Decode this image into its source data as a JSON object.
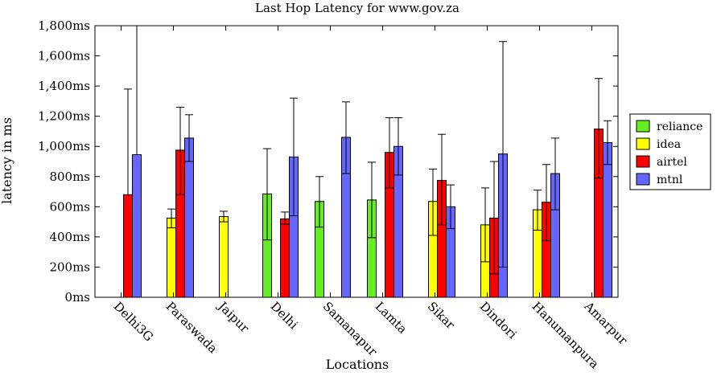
{
  "chart_data": {
    "type": "bar",
    "title": "Last Hop Latency for www.gov.za",
    "xlabel": "Locations",
    "ylabel": "latency in ms",
    "ylim": [
      0,
      1800
    ],
    "yticks": [
      0,
      200,
      400,
      600,
      800,
      1000,
      1200,
      1400,
      1600,
      1800
    ],
    "ytick_labels": [
      "0ms",
      "200ms",
      "400ms",
      "600ms",
      "800ms",
      "1,000ms",
      "1,200ms",
      "1,400ms",
      "1,600ms",
      "1,800ms"
    ],
    "categories": [
      "Delhi3G",
      "Paraswada",
      "Jaipur",
      "Delhi",
      "Samanapur",
      "Lamta",
      "Sikar",
      "Dindori",
      "Hanumanpura",
      "Amarpur"
    ],
    "legend_position": "right",
    "series": [
      {
        "name": "reliance",
        "color": "#66ee22",
        "values": [
          null,
          null,
          null,
          685,
          635,
          645,
          null,
          null,
          null,
          null
        ],
        "err_low": [
          null,
          null,
          null,
          380,
          465,
          395,
          null,
          null,
          null,
          null
        ],
        "err_high": [
          null,
          null,
          null,
          985,
          800,
          895,
          null,
          null,
          null,
          null
        ]
      },
      {
        "name": "idea",
        "color": "#ffff00",
        "values": [
          null,
          525,
          535,
          null,
          null,
          null,
          635,
          480,
          580,
          null
        ],
        "err_low": [
          null,
          460,
          500,
          null,
          null,
          null,
          410,
          235,
          445,
          null
        ],
        "err_high": [
          null,
          585,
          570,
          null,
          null,
          null,
          850,
          725,
          710,
          null
        ]
      },
      {
        "name": "airtel",
        "color": "#ff0000",
        "values": [
          680,
          975,
          null,
          520,
          null,
          960,
          775,
          525,
          630,
          1115
        ],
        "err_low": [
          null,
          680,
          null,
          485,
          null,
          725,
          480,
          155,
          375,
          790
        ],
        "err_high": [
          1380,
          1260,
          null,
          565,
          null,
          1190,
          1080,
          900,
          880,
          1450
        ]
      },
      {
        "name": "mtnl",
        "color": "#6666ff",
        "values": [
          945,
          1055,
          null,
          930,
          1060,
          1000,
          600,
          950,
          820,
          1025
        ],
        "err_low": [
          null,
          900,
          null,
          540,
          820,
          810,
          455,
          200,
          580,
          880
        ],
        "err_high": [
          1800,
          1210,
          null,
          1320,
          1295,
          1190,
          745,
          1695,
          1055,
          1170
        ]
      }
    ]
  }
}
